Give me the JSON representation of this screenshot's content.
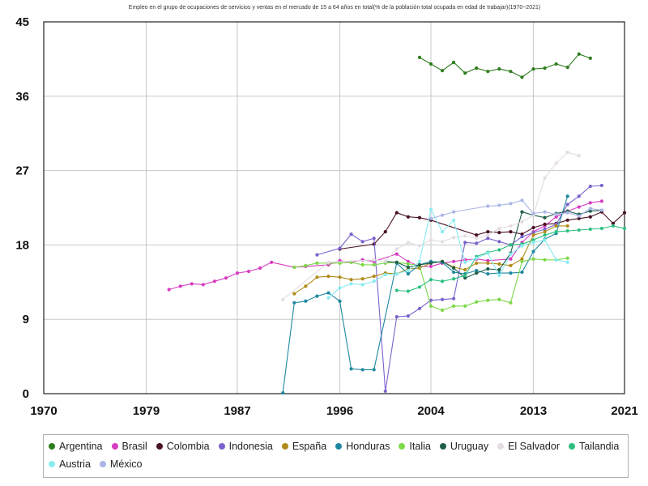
{
  "chart_data": {
    "type": "line",
    "title": "Empleo en el grupo de ocupaciones de servicios y ventas en el mercado de 15 a 64 años en total(% de la población total ocupada en edad de trabajar)(1970~2021)",
    "xlabel": "",
    "ylabel": "",
    "xlim": [
      1970,
      2021
    ],
    "ylim": [
      0,
      45
    ],
    "xticks": [
      1970,
      1979,
      1987,
      1996,
      2004,
      2013,
      2021
    ],
    "yticks": [
      0,
      9,
      18,
      27,
      36,
      45
    ],
    "grid": true,
    "legend_position": "bottom",
    "series": [
      {
        "name": "Argentina",
        "color": "#2e7d1e",
        "x": [
          2003,
          2004,
          2005,
          2006,
          2007,
          2008,
          2009,
          2010,
          2011,
          2012,
          2013,
          2014,
          2015,
          2016,
          2017,
          2018
        ],
        "y": [
          40.7,
          39.9,
          39.1,
          40.1,
          38.8,
          39.4,
          39.0,
          39.3,
          39.0,
          38.3,
          39.3,
          39.4,
          39.9,
          39.5,
          41.1,
          40.6
        ]
      },
      {
        "name": "Brasil",
        "color": "#d63cc0",
        "x": [
          1981,
          1982,
          1983,
          1984,
          1985,
          1986,
          1987,
          1988,
          1989,
          1990,
          1992,
          1993,
          1995,
          1996,
          1997,
          1998,
          1999,
          2001,
          2002,
          2003,
          2004,
          2005,
          2006,
          2007,
          2008,
          2009,
          2011,
          2012,
          2013,
          2014,
          2015,
          2016,
          2017,
          2018,
          2019
        ],
        "y": [
          12.6,
          13.0,
          13.3,
          13.2,
          13.6,
          14.0,
          14.6,
          14.8,
          15.2,
          15.9,
          15.3,
          15.4,
          15.6,
          16.1,
          15.9,
          16.2,
          16.0,
          16.9,
          16.0,
          15.4,
          15.4,
          15.8,
          16.0,
          16.2,
          16.3,
          16.1,
          16.3,
          18.3,
          19.6,
          20.3,
          21.4,
          22.1,
          22.6,
          23.1,
          23.3
        ]
      },
      {
        "name": "Colombia",
        "color": "#4a1226",
        "x": [
          1996,
          1999,
          2000,
          2001,
          2002,
          2003,
          2004,
          2008,
          2009,
          2010,
          2011,
          2012,
          2013,
          2014,
          2015,
          2016,
          2017,
          2018,
          2019,
          2020,
          2021
        ],
        "y": [
          17.5,
          18.1,
          19.6,
          21.9,
          21.4,
          21.3,
          21.0,
          19.2,
          19.6,
          19.5,
          19.6,
          19.3,
          20.1,
          20.5,
          20.6,
          21.0,
          21.2,
          21.4,
          22.0,
          20.6,
          21.9
        ]
      },
      {
        "name": "Indonesia",
        "color": "#7b62cc",
        "x": [
          1994,
          1996,
          1997,
          1998,
          1999,
          2000,
          2001,
          2002,
          2003,
          2004,
          2005,
          2006,
          2007,
          2008,
          2009,
          2010,
          2011,
          2012,
          2013,
          2014,
          2015,
          2016,
          2017,
          2018,
          2019
        ],
        "y": [
          16.8,
          17.6,
          19.3,
          18.4,
          18.8,
          0.3,
          9.3,
          9.4,
          10.3,
          11.3,
          11.4,
          11.5,
          18.3,
          18.2,
          18.8,
          18.4,
          18.0,
          19.0,
          19.5,
          19.9,
          20.5,
          22.9,
          23.9,
          25.1,
          25.2
        ]
      },
      {
        "name": "España",
        "color": "#b08b1a",
        "x": [
          1992,
          1993,
          1994,
          1995,
          1996,
          1997,
          1998,
          1999,
          2000,
          2001,
          2002,
          2003,
          2004,
          2005,
          2006,
          2007,
          2008,
          2009,
          2010,
          2011,
          2012,
          2013,
          2014,
          2015,
          2016
        ],
        "y": [
          12.1,
          13.0,
          14.1,
          14.2,
          14.1,
          13.8,
          13.9,
          14.2,
          14.6,
          14.5,
          15.1,
          15.2,
          15.8,
          16.0,
          15.3,
          15.0,
          15.8,
          15.8,
          15.7,
          15.5,
          16.3,
          19.2,
          19.6,
          20.3,
          20.3
        ]
      },
      {
        "name": "Honduras",
        "color": "#1f88a0",
        "x": [
          1991,
          1992,
          1993,
          1994,
          1995,
          1996,
          1997,
          1998,
          1999,
          2001,
          2002,
          2003,
          2004,
          2005,
          2006,
          2007,
          2008,
          2009,
          2010,
          2011,
          2012,
          2013,
          2014,
          2015,
          2016
        ],
        "y": [
          0.1,
          11.0,
          11.2,
          11.8,
          12.2,
          11.2,
          3.0,
          2.9,
          2.9,
          15.8,
          14.5,
          15.6,
          16.0,
          15.9,
          14.7,
          14.5,
          14.9,
          14.5,
          14.6,
          14.6,
          14.7,
          17.2,
          18.7,
          19.4,
          23.9
        ]
      },
      {
        "name": "Italia",
        "color": "#7dd84a",
        "x": [
          1992,
          1993,
          1994,
          1995,
          1996,
          1997,
          1998,
          1999,
          2000,
          2001,
          2002,
          2003,
          2004,
          2005,
          2006,
          2007,
          2008,
          2009,
          2010,
          2011,
          2012,
          2013,
          2014,
          2015,
          2016
        ],
        "y": [
          15.3,
          15.5,
          15.8,
          15.8,
          15.8,
          15.9,
          15.6,
          15.6,
          15.8,
          15.9,
          15.7,
          15.5,
          10.6,
          10.1,
          10.6,
          10.6,
          11.1,
          11.3,
          11.4,
          11.0,
          16.0,
          16.3,
          16.2,
          16.2,
          16.4
        ]
      },
      {
        "name": "Uruguay",
        "color": "#1e5e4a",
        "x": [
          2000,
          2001,
          2002,
          2003,
          2004,
          2005,
          2006,
          2007,
          2008,
          2009,
          2010,
          2011,
          2012,
          2013,
          2014,
          2015,
          2016,
          2017,
          2018,
          2019
        ],
        "y": [
          16.0,
          15.9,
          15.3,
          15.6,
          15.8,
          16.0,
          15.2,
          14.0,
          14.6,
          15.1,
          15.0,
          17.0,
          22.0,
          21.6,
          21.3,
          21.8,
          22.1,
          21.7,
          22.1,
          22.2
        ]
      },
      {
        "name": "El Salvador",
        "color": "#e3dce3",
        "x": [
          1991,
          1995,
          1999,
          2000,
          2001,
          2002,
          2003,
          2004,
          2005,
          2006,
          2007,
          2008,
          2009,
          2010,
          2011,
          2012,
          2013,
          2014,
          2015,
          2016,
          2017
        ],
        "y": [
          11.4,
          15.9,
          16.2,
          16.0,
          17.5,
          18.3,
          17.9,
          18.6,
          18.4,
          18.9,
          19.1,
          18.8,
          19.2,
          20.0,
          20.3,
          20.8,
          21.6,
          26.1,
          27.9,
          29.2,
          28.8
        ]
      },
      {
        "name": "Tailandia",
        "color": "#2ebf80",
        "x": [
          2001,
          2002,
          2003,
          2004,
          2005,
          2006,
          2007,
          2008,
          2009,
          2010,
          2011,
          2012,
          2013,
          2014,
          2015,
          2016,
          2017,
          2018,
          2019,
          2020,
          2021
        ],
        "y": [
          12.5,
          12.4,
          12.9,
          13.8,
          13.6,
          13.9,
          14.3,
          16.6,
          17.1,
          17.4,
          18.0,
          18.1,
          18.6,
          19.2,
          19.6,
          19.7,
          19.8,
          19.9,
          20.0,
          20.3,
          20.0
        ]
      },
      {
        "name": "Austria",
        "color": "#8aecef",
        "x": [
          1995,
          1996,
          1997,
          1998,
          1999,
          2000,
          2001,
          2002,
          2003,
          2004,
          2005,
          2006,
          2007,
          2008,
          2009,
          2010,
          2011,
          2012,
          2013,
          2014,
          2015,
          2016
        ],
        "y": [
          11.6,
          12.8,
          13.3,
          13.2,
          13.6,
          14.4,
          14.5,
          14.9,
          16.0,
          22.3,
          19.6,
          21.0,
          15.9,
          16.4,
          17.0,
          14.3,
          16.9,
          17.9,
          18.3,
          18.6,
          16.2,
          15.9
        ]
      },
      {
        "name": "México",
        "color": "#a9b6e6",
        "x": [
          2004,
          2005,
          2006,
          2009,
          2010,
          2011,
          2012,
          2013,
          2014,
          2015,
          2016,
          2017,
          2018,
          2019
        ],
        "y": [
          21.2,
          21.6,
          22.0,
          22.7,
          22.8,
          23.0,
          23.4,
          21.8,
          22.0,
          21.7,
          21.9,
          21.5,
          22.4,
          22.2
        ]
      }
    ]
  }
}
